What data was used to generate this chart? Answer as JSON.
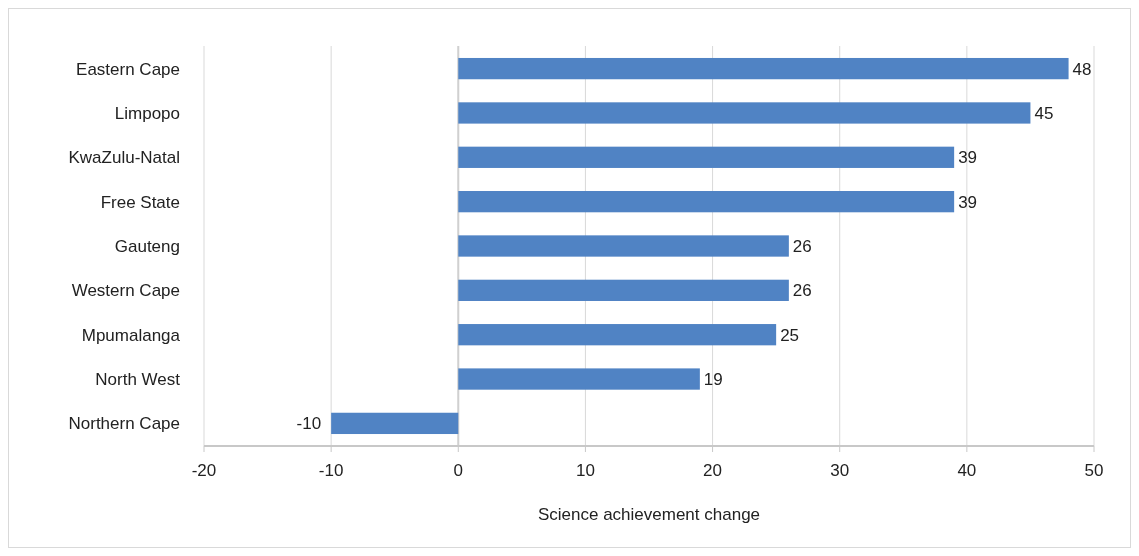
{
  "chart_data": {
    "type": "bar",
    "orientation": "horizontal",
    "xlabel": "Science achievement change",
    "categories": [
      "Eastern Cape",
      "Limpopo",
      "KwaZulu-Natal",
      "Free State",
      "Gauteng",
      "Western Cape",
      "Mpumalanga",
      "North West",
      "Northern Cape"
    ],
    "values": [
      48,
      45,
      39,
      39,
      26,
      26,
      25,
      19,
      -10
    ],
    "color": "#5083c4",
    "xlim": [
      -20,
      50
    ],
    "xticks": [
      -20,
      -10,
      0,
      10,
      20,
      30,
      40,
      50
    ],
    "grid": "x",
    "data_labels": true
  }
}
